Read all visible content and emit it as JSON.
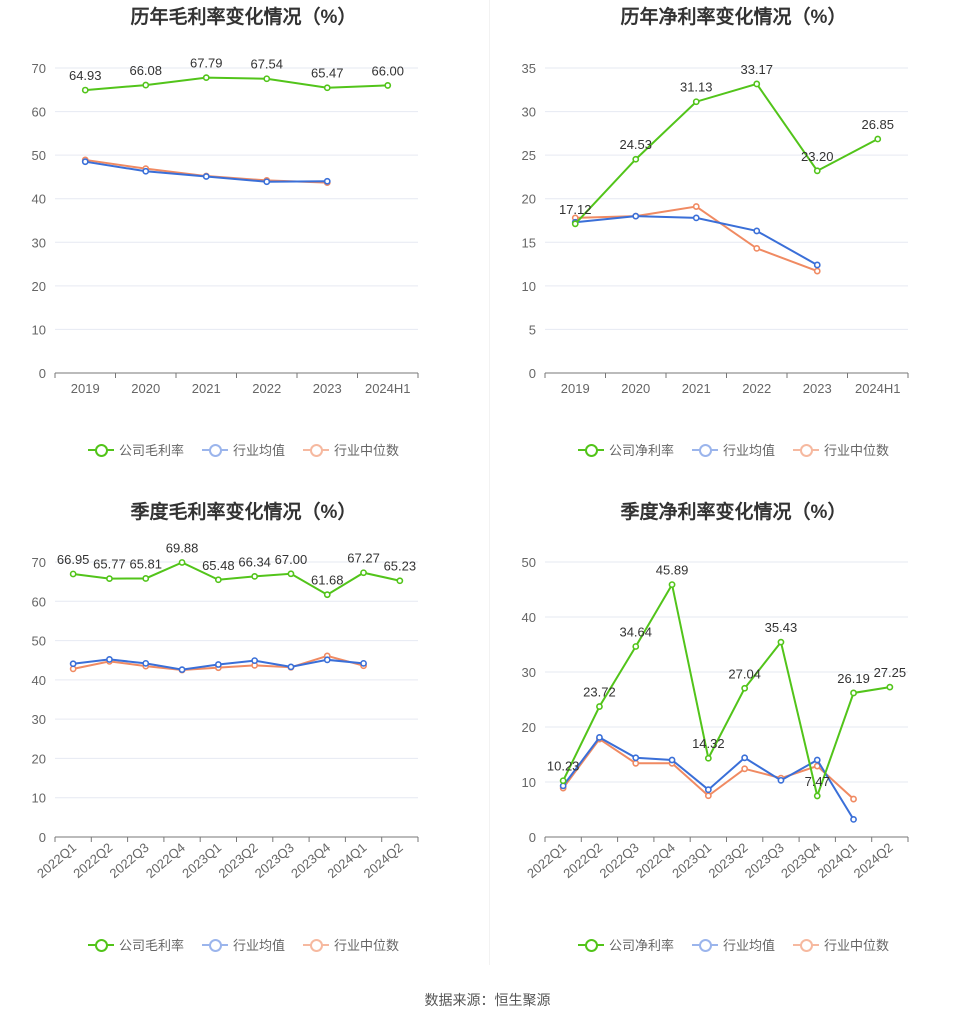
{
  "source": "数据来源：恒生聚源",
  "colors": {
    "company": "#52c41a",
    "avg": "#3a6fd8",
    "median": "#f08a62"
  },
  "legend_labels": {
    "gross_company": "公司毛利率",
    "net_company": "公司净利率",
    "avg": "行业均值",
    "median": "行业中位数"
  },
  "chart_data": [
    {
      "id": "annual-gross",
      "type": "line",
      "title": "历年毛利率变化情况（%）",
      "categories": [
        "2019",
        "2020",
        "2021",
        "2022",
        "2023",
        "2024H1"
      ],
      "ylim": [
        0,
        70
      ],
      "yticks": [
        0,
        10,
        20,
        30,
        40,
        50,
        60,
        70
      ],
      "rotate_labels": false,
      "series": [
        {
          "name": "公司毛利率",
          "key": "company",
          "values": [
            64.93,
            66.08,
            67.79,
            67.54,
            65.47,
            66.0
          ],
          "labels": [
            "64.93",
            "66.08",
            "67.79",
            "67.54",
            "65.47",
            "66.00"
          ]
        },
        {
          "name": "行业均值",
          "key": "avg",
          "values": [
            48.5,
            46.3,
            45.1,
            43.9,
            44.0,
            null
          ]
        },
        {
          "name": "行业中位数",
          "key": "median",
          "values": [
            48.9,
            46.9,
            45.2,
            44.2,
            43.7,
            null
          ]
        }
      ]
    },
    {
      "id": "annual-net",
      "type": "line",
      "title": "历年净利率变化情况（%）",
      "categories": [
        "2019",
        "2020",
        "2021",
        "2022",
        "2023",
        "2024H1"
      ],
      "ylim": [
        0,
        35
      ],
      "yticks": [
        0,
        5,
        10,
        15,
        20,
        25,
        30,
        35
      ],
      "rotate_labels": false,
      "series": [
        {
          "name": "公司净利率",
          "key": "company",
          "values": [
            17.12,
            24.53,
            31.13,
            33.17,
            23.2,
            26.85
          ],
          "labels": [
            "17.12",
            "24.53",
            "31.13",
            "33.17",
            "23.20",
            "26.85"
          ]
        },
        {
          "name": "行业均值",
          "key": "avg",
          "values": [
            17.3,
            18.0,
            17.8,
            16.3,
            12.4,
            null
          ]
        },
        {
          "name": "行业中位数",
          "key": "median",
          "values": [
            17.8,
            18.0,
            19.1,
            14.3,
            11.7,
            null
          ]
        }
      ]
    },
    {
      "id": "quarter-gross",
      "type": "line",
      "title": "季度毛利率变化情况（%）",
      "categories": [
        "2022Q1",
        "2022Q2",
        "2022Q3",
        "2022Q4",
        "2023Q1",
        "2023Q2",
        "2023Q3",
        "2023Q4",
        "2024Q1",
        "2024Q2"
      ],
      "ylim": [
        0,
        70
      ],
      "yticks": [
        0,
        10,
        20,
        30,
        40,
        50,
        60,
        70
      ],
      "rotate_labels": true,
      "series": [
        {
          "name": "公司毛利率",
          "key": "company",
          "values": [
            66.95,
            65.77,
            65.81,
            69.88,
            65.48,
            66.34,
            67.0,
            61.68,
            67.27,
            65.23
          ],
          "labels": [
            "66.95",
            "65.77",
            "65.81",
            "69.88",
            "65.48",
            "66.34",
            "67.00",
            "61.68",
            "67.27",
            "65.23"
          ]
        },
        {
          "name": "行业均值",
          "key": "avg",
          "values": [
            44.1,
            45.2,
            44.2,
            42.6,
            43.9,
            44.9,
            43.3,
            45.1,
            44.2,
            null
          ]
        },
        {
          "name": "行业中位数",
          "key": "median",
          "values": [
            42.8,
            44.7,
            43.5,
            42.5,
            43.1,
            43.7,
            43.2,
            46.1,
            43.6,
            null
          ]
        }
      ]
    },
    {
      "id": "quarter-net",
      "type": "line",
      "title": "季度净利率变化情况（%）",
      "categories": [
        "2022Q1",
        "2022Q2",
        "2022Q3",
        "2022Q4",
        "2023Q1",
        "2023Q2",
        "2023Q3",
        "2023Q4",
        "2024Q1",
        "2024Q2"
      ],
      "ylim": [
        0,
        50
      ],
      "yticks": [
        0,
        10,
        20,
        30,
        40,
        50
      ],
      "rotate_labels": true,
      "series": [
        {
          "name": "公司净利率",
          "key": "company",
          "values": [
            10.23,
            23.72,
            34.64,
            45.89,
            14.32,
            27.04,
            35.43,
            7.47,
            26.19,
            27.25
          ],
          "labels": [
            "10.23",
            "23.72",
            "34.64",
            "45.89",
            "14.32",
            "27.04",
            "35.43",
            "7.47",
            "26.19",
            "27.25"
          ]
        },
        {
          "name": "行业均值",
          "key": "avg",
          "values": [
            9.3,
            18.1,
            14.4,
            14.0,
            8.6,
            14.4,
            10.3,
            14.0,
            3.2,
            null
          ]
        },
        {
          "name": "行业中位数",
          "key": "median",
          "values": [
            8.9,
            17.8,
            13.4,
            13.4,
            7.5,
            12.4,
            10.7,
            12.9,
            6.9,
            null
          ]
        }
      ]
    }
  ]
}
